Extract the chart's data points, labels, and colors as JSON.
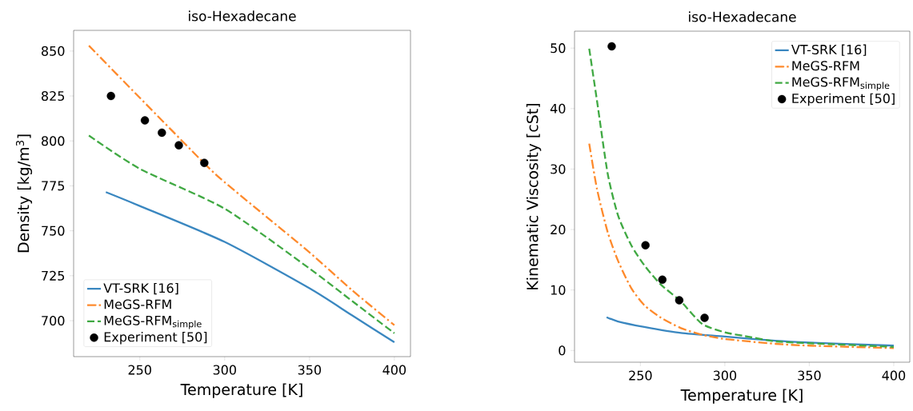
{
  "chart_data": [
    {
      "type": "line",
      "title": "iso-Hexadecane",
      "xlabel": "Temperature [K]",
      "ylabel": "Density [kg/m$^{3}$]",
      "xlim": [
        211,
        409.5
      ],
      "ylim": [
        680,
        861.5
      ],
      "xticks": [
        250,
        300,
        350,
        400
      ],
      "yticks": [
        700,
        725,
        750,
        775,
        800,
        825,
        850
      ],
      "legend": "bottom left",
      "series": [
        {
          "name": "VT-SRK [16]",
          "color": "#3a87c0",
          "line_style": "solid",
          "x": [
            230,
            250,
            300,
            350,
            375,
            400
          ],
          "values": [
            771.5,
            763.8,
            743.8,
            718,
            703,
            688
          ]
        },
        {
          "name": "MeGS-RFM",
          "color": "#fe8a2c",
          "line_style": "dashdot",
          "x": [
            220,
            250,
            288,
            300,
            325,
            350,
            375,
            400
          ],
          "values": [
            853,
            824,
            787.5,
            777,
            757.5,
            738,
            717,
            697.5
          ]
        },
        {
          "name": "MeGS-RFM$_{simple}$",
          "color": "#40a943",
          "line_style": "dashed",
          "x": [
            220,
            250,
            300,
            350,
            375,
            400
          ],
          "values": [
            803,
            784.5,
            762.3,
            729,
            711,
            693
          ]
        },
        {
          "name": "Experiment [50]",
          "type": "scatter",
          "color": "#000000",
          "x": [
            233,
            253,
            263,
            273,
            288
          ],
          "values": [
            825,
            811.4,
            804.6,
            797.6,
            787.8
          ]
        }
      ]
    },
    {
      "type": "line",
      "title": "iso-Hexadecane",
      "xlabel": "Temperature [K]",
      "ylabel": "Kinematic Viscosity [cSt]",
      "xlim": [
        211,
        409.5
      ],
      "ylim": [
        -1.94,
        52.8
      ],
      "xticks": [
        250,
        300,
        350,
        400
      ],
      "yticks": [
        0,
        10,
        20,
        30,
        40,
        50
      ],
      "legend": "top right",
      "series": [
        {
          "name": "VT-SRK [16]",
          "color": "#3a87c0",
          "line_style": "solid",
          "x": [
            230,
            236.8,
            252.3,
            274,
            300,
            330,
            350,
            400
          ],
          "values": [
            5.5,
            4.8,
            3.9,
            2.9,
            2.3,
            1.6,
            1.3,
            0.8
          ]
        },
        {
          "name": "MeGS-RFM",
          "color": "#fe8a2c",
          "line_style": "dashdot",
          "x": [
            219.7,
            224.3,
            230.6,
            236.8,
            244.6,
            252.3,
            261.7,
            274,
            286.5,
            300,
            330,
            350,
            400
          ],
          "values": [
            34.2,
            26.7,
            19.6,
            14.8,
            10.3,
            7.5,
            5.5,
            3.7,
            2.6,
            1.9,
            1.1,
            0.8,
            0.4
          ]
        },
        {
          "name": "MeGS-RFM$_{simple}$",
          "color": "#40a943",
          "line_style": "dashed",
          "x": [
            219.7,
            224.3,
            230.6,
            236.8,
            244.6,
            252.3,
            261.7,
            274,
            286.5,
            300,
            311.5,
            330,
            350,
            400
          ],
          "values": [
            49.9,
            41.3,
            29.3,
            22.3,
            17.4,
            14.1,
            11.0,
            8.1,
            4.4,
            3.0,
            2.4,
            1.5,
            1.2,
            0.6
          ]
        },
        {
          "name": "Experiment [50]",
          "type": "scatter",
          "color": "#000000",
          "x": [
            233,
            253,
            263,
            273,
            288
          ],
          "values": [
            50.3,
            17.4,
            11.7,
            8.3,
            5.4
          ]
        }
      ]
    }
  ]
}
